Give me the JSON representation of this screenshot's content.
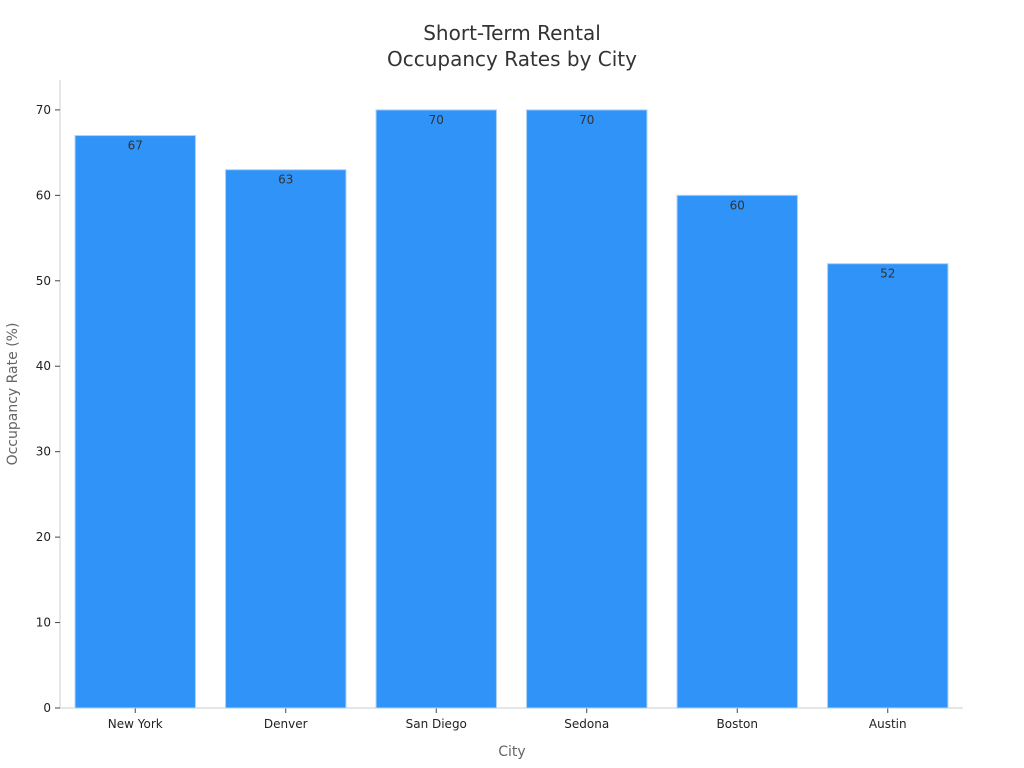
{
  "chart_data": {
    "type": "bar",
    "title_lines": [
      "Short-Term Rental",
      "Occupancy Rates by City"
    ],
    "xlabel": "City",
    "ylabel": "Occupancy Rate (%)",
    "categories": [
      "New York",
      "Denver",
      "San Diego",
      "Sedona",
      "Boston",
      "Austin"
    ],
    "values": [
      67,
      63,
      70,
      70,
      60,
      52
    ],
    "data_labels": [
      "67",
      "63",
      "70",
      "70",
      "60",
      "52"
    ],
    "ylim": [
      0,
      73.5
    ],
    "yticks": [
      0,
      10,
      20,
      30,
      40,
      50,
      60,
      70
    ],
    "ytick_labels": [
      "0",
      "10",
      "20",
      "30",
      "40",
      "50",
      "60",
      "70"
    ],
    "grid": false,
    "legend": "none",
    "colors": {
      "bar": "#2f93f8",
      "bar_edge": "#a9d0f7",
      "axis": "#cccccc",
      "text": "#333333",
      "axis_label": "#666666"
    }
  }
}
